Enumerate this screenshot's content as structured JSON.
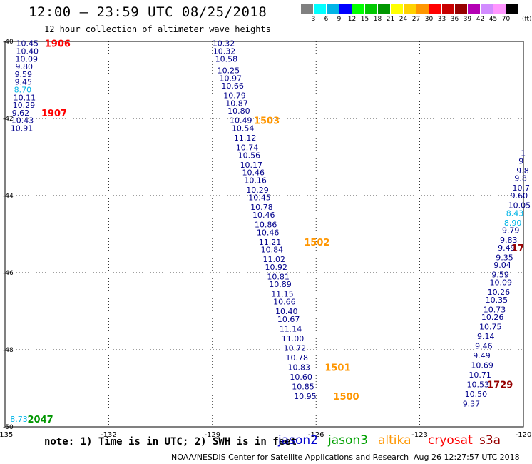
{
  "header": {
    "title": "12:00 – 23:59 UTC 08/25/2018",
    "subtitle": "12 hour collection of altimeter wave heights"
  },
  "legend": {
    "unit": "(ft)",
    "bins": [
      {
        "label": "3",
        "color": "#808080"
      },
      {
        "label": "6",
        "color": "#00ffff"
      },
      {
        "label": "9",
        "color": "#00b4e6"
      },
      {
        "label": "12",
        "color": "#0000ff"
      },
      {
        "label": "15",
        "color": "#00ff00"
      },
      {
        "label": "18",
        "color": "#00c800"
      },
      {
        "label": "21",
        "color": "#009600"
      },
      {
        "label": "24",
        "color": "#ffff00"
      },
      {
        "label": "27",
        "color": "#ffd200"
      },
      {
        "label": "30",
        "color": "#ff9600"
      },
      {
        "label": "33",
        "color": "#ff0000"
      },
      {
        "label": "36",
        "color": "#c80000"
      },
      {
        "label": "39",
        "color": "#960000"
      },
      {
        "label": "42",
        "color": "#b400b4"
      },
      {
        "label": "45",
        "color": "#d28cff"
      },
      {
        "label": "70",
        "color": "#ff96ff"
      },
      {
        "label": "",
        "color": "#000000"
      }
    ]
  },
  "map": {
    "lon_ticks": [
      "-135",
      "-132",
      "-129",
      "-126",
      "-123",
      "-120"
    ],
    "lat_ticks": [
      "-40",
      "-42",
      "-44",
      "-46",
      "-48",
      "-50"
    ],
    "tracks": [
      {
        "satellite": "jason2",
        "color": "#00008b",
        "points": [
          {
            "lon": -134.68,
            "lat": -40.05,
            "v": "10.45"
          },
          {
            "lon": -134.68,
            "lat": -40.25,
            "v": "10.40"
          },
          {
            "lon": -134.7,
            "lat": -40.45,
            "v": "10.09"
          },
          {
            "lon": -134.7,
            "lat": -40.65,
            "v": "9.80"
          },
          {
            "lon": -134.72,
            "lat": -40.85,
            "v": "9.59"
          },
          {
            "lon": -134.72,
            "lat": -41.05,
            "v": "9.45"
          },
          {
            "lon": -134.74,
            "lat": -41.25,
            "v": "8.70",
            "c": "#00b4e6"
          },
          {
            "lon": -134.76,
            "lat": -41.45,
            "v": "10.11"
          },
          {
            "lon": -134.78,
            "lat": -41.65,
            "v": "10.29"
          },
          {
            "lon": -134.8,
            "lat": -41.85,
            "v": "9.62"
          },
          {
            "lon": -134.82,
            "lat": -42.05,
            "v": "10.43"
          },
          {
            "lon": -134.84,
            "lat": -42.25,
            "v": "10.91"
          }
        ]
      },
      {
        "satellite": "jason2",
        "color": "#00008b",
        "points": [
          {
            "lon": -129.0,
            "lat": -40.05,
            "v": "10.32"
          },
          {
            "lon": -128.98,
            "lat": -40.25,
            "v": "10.32"
          },
          {
            "lon": -128.92,
            "lat": -40.45,
            "v": "10.58"
          },
          {
            "lon": -128.86,
            "lat": -40.75,
            "v": "10.25"
          },
          {
            "lon": -128.8,
            "lat": -40.95,
            "v": "10.97"
          },
          {
            "lon": -128.74,
            "lat": -41.15,
            "v": "10.66"
          },
          {
            "lon": -128.68,
            "lat": -41.4,
            "v": "10.79"
          },
          {
            "lon": -128.62,
            "lat": -41.6,
            "v": "10.87"
          },
          {
            "lon": -128.56,
            "lat": -41.8,
            "v": "10.80"
          },
          {
            "lon": -128.5,
            "lat": -42.05,
            "v": "10.49"
          },
          {
            "lon": -128.44,
            "lat": -42.25,
            "v": "10.54"
          },
          {
            "lon": -128.38,
            "lat": -42.5,
            "v": "11.12"
          },
          {
            "lon": -128.32,
            "lat": -42.75,
            "v": "10.74"
          },
          {
            "lon": -128.26,
            "lat": -42.95,
            "v": "10.56"
          },
          {
            "lon": -128.2,
            "lat": -43.2,
            "v": "10.17"
          },
          {
            "lon": -128.14,
            "lat": -43.4,
            "v": "10.46"
          },
          {
            "lon": -128.08,
            "lat": -43.6,
            "v": "10.16"
          },
          {
            "lon": -128.02,
            "lat": -43.85,
            "v": "10.29"
          },
          {
            "lon": -127.96,
            "lat": -44.05,
            "v": "10.45"
          },
          {
            "lon": -127.9,
            "lat": -44.3,
            "v": "10.78"
          },
          {
            "lon": -127.84,
            "lat": -44.5,
            "v": "10.46"
          },
          {
            "lon": -127.78,
            "lat": -44.75,
            "v": "10.86"
          },
          {
            "lon": -127.72,
            "lat": -44.95,
            "v": "10.46"
          },
          {
            "lon": -127.66,
            "lat": -45.2,
            "v": "11.21"
          },
          {
            "lon": -127.6,
            "lat": -45.4,
            "v": "10.84"
          },
          {
            "lon": -127.54,
            "lat": -45.65,
            "v": "11.02"
          },
          {
            "lon": -127.48,
            "lat": -45.85,
            "v": "10.92"
          },
          {
            "lon": -127.42,
            "lat": -46.1,
            "v": "10.81"
          },
          {
            "lon": -127.36,
            "lat": -46.3,
            "v": "10.89"
          },
          {
            "lon": -127.3,
            "lat": -46.55,
            "v": "11.15"
          },
          {
            "lon": -127.24,
            "lat": -46.75,
            "v": "10.66"
          },
          {
            "lon": -127.18,
            "lat": -47.0,
            "v": "10.40"
          },
          {
            "lon": -127.12,
            "lat": -47.2,
            "v": "10.67"
          },
          {
            "lon": -127.06,
            "lat": -47.45,
            "v": "11.14"
          },
          {
            "lon": -127.0,
            "lat": -47.7,
            "v": "11.00"
          },
          {
            "lon": -126.94,
            "lat": -47.95,
            "v": "10.72"
          },
          {
            "lon": -126.88,
            "lat": -48.2,
            "v": "10.78"
          },
          {
            "lon": -126.82,
            "lat": -48.45,
            "v": "10.83"
          },
          {
            "lon": -126.76,
            "lat": -48.7,
            "v": "10.60"
          },
          {
            "lon": -126.7,
            "lat": -48.95,
            "v": "10.85"
          },
          {
            "lon": -126.64,
            "lat": -49.2,
            "v": "10.95"
          }
        ]
      },
      {
        "satellite": "jason2",
        "color": "#00008b",
        "points": [
          {
            "lon": -120.08,
            "lat": -42.9,
            "v": "1"
          },
          {
            "lon": -120.14,
            "lat": -43.1,
            "v": "9"
          },
          {
            "lon": -120.2,
            "lat": -43.35,
            "v": "9.8"
          },
          {
            "lon": -120.26,
            "lat": -43.55,
            "v": "9.8"
          },
          {
            "lon": -120.32,
            "lat": -43.8,
            "v": "10.7"
          },
          {
            "lon": -120.38,
            "lat": -44.0,
            "v": "9.60"
          },
          {
            "lon": -120.44,
            "lat": -44.25,
            "v": "10.05"
          },
          {
            "lon": -120.5,
            "lat": -44.45,
            "v": "8.43",
            "c": "#00b4e6"
          },
          {
            "lon": -120.56,
            "lat": -44.7,
            "v": "8.90",
            "c": "#00b4e6"
          },
          {
            "lon": -120.62,
            "lat": -44.9,
            "v": "9.79"
          },
          {
            "lon": -120.68,
            "lat": -45.15,
            "v": "9.83"
          },
          {
            "lon": -120.74,
            "lat": -45.35,
            "v": "9.49"
          },
          {
            "lon": -120.8,
            "lat": -45.6,
            "v": "9.35"
          },
          {
            "lon": -120.86,
            "lat": -45.8,
            "v": "9.04"
          },
          {
            "lon": -120.92,
            "lat": -46.05,
            "v": "9.59"
          },
          {
            "lon": -120.98,
            "lat": -46.25,
            "v": "10.09"
          },
          {
            "lon": -121.04,
            "lat": -46.5,
            "v": "10.26"
          },
          {
            "lon": -121.1,
            "lat": -46.7,
            "v": "10.35"
          },
          {
            "lon": -121.16,
            "lat": -46.95,
            "v": "10.73"
          },
          {
            "lon": -121.22,
            "lat": -47.15,
            "v": "10.26"
          },
          {
            "lon": -121.28,
            "lat": -47.4,
            "v": "10.75"
          },
          {
            "lon": -121.34,
            "lat": -47.65,
            "v": "9.14"
          },
          {
            "lon": -121.4,
            "lat": -47.9,
            "v": "9.46"
          },
          {
            "lon": -121.46,
            "lat": -48.15,
            "v": "9.49"
          },
          {
            "lon": -121.52,
            "lat": -48.4,
            "v": "10.69"
          },
          {
            "lon": -121.58,
            "lat": -48.65,
            "v": "10.71"
          },
          {
            "lon": -121.64,
            "lat": -48.9,
            "v": "10.53"
          },
          {
            "lon": -121.7,
            "lat": -49.15,
            "v": "10.50"
          },
          {
            "lon": -121.76,
            "lat": -49.4,
            "v": "9.37"
          }
        ]
      },
      {
        "satellite": "jason3",
        "color": "#00b4e6",
        "points": [
          {
            "lon": -134.85,
            "lat": -49.8,
            "v": "8.73"
          }
        ]
      }
    ],
    "time_labels": [
      {
        "lon": -133.85,
        "lat": -40.05,
        "t": "1906",
        "color": "#ff0000"
      },
      {
        "lon": -133.95,
        "lat": -41.85,
        "t": "1907",
        "color": "#ff0000"
      },
      {
        "lon": -127.8,
        "lat": -42.05,
        "t": "1503",
        "color": "#ff9600"
      },
      {
        "lon": -126.35,
        "lat": -45.2,
        "t": "1502",
        "color": "#ff9600"
      },
      {
        "lon": -125.75,
        "lat": -48.45,
        "t": "1501",
        "color": "#ff9600"
      },
      {
        "lon": -125.5,
        "lat": -49.2,
        "t": "1500",
        "color": "#ff9600"
      },
      {
        "lon": -134.35,
        "lat": -49.8,
        "t": "2047",
        "color": "#009600"
      },
      {
        "lon": -121.05,
        "lat": -48.9,
        "t": "1729",
        "color": "#960000"
      },
      {
        "lon": -120.35,
        "lat": -45.35,
        "t": "17",
        "color": "#960000"
      }
    ]
  },
  "footer": {
    "note": "note: 1) Time is in UTC; 2) SWH is in feet",
    "satellites": [
      {
        "name": "jason2",
        "color": "#0000cd"
      },
      {
        "name": "jason3",
        "color": "#00a000"
      },
      {
        "name": "altika",
        "color": "#ff9600"
      },
      {
        "name": "cryosat",
        "color": "#ff0000"
      },
      {
        "name": "s3a",
        "color": "#960000"
      }
    ],
    "credit": "NOAA/NESDIS Center for Satellite Applications and Research",
    "timestamp": "Aug 26 12:27:57 UTC 2018"
  }
}
